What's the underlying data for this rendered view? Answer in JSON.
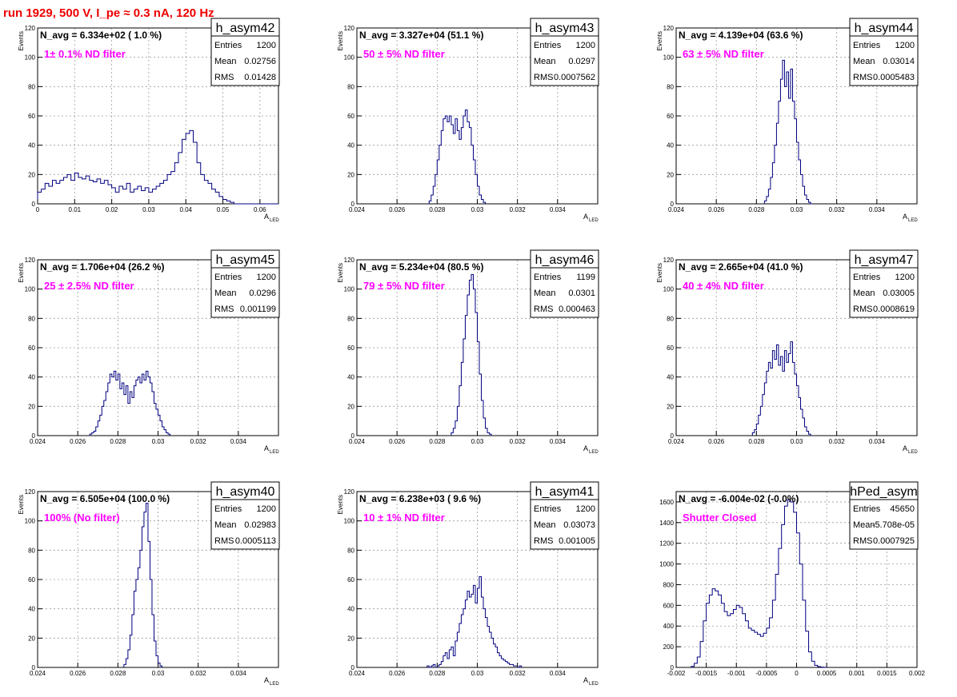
{
  "page": {
    "title": "run 1929,   500 V, I_pe ≈ 0.3 nA, 120 Hz"
  },
  "colors": {
    "hist_line": "#000080",
    "annotation": "#ff00ff",
    "title": "#ee0000",
    "grid": "#9a9a9a"
  },
  "chart_data": [
    {
      "type": "histogram",
      "name": "h_asym42",
      "navg_label": "N_avg = 6.334e+02 ( 1.0 %)",
      "filter_label": "1± 0.1% ND filter",
      "stats": {
        "entries_label": "Entries",
        "entries": "1200",
        "mean_label": "Mean",
        "mean": "0.02756",
        "rms_label": "RMS",
        "rms": "0.01428"
      },
      "ylabel": "Events",
      "xlabel": "A",
      "xlabel_sub": "LED",
      "xlim": [
        0,
        0.065
      ],
      "ylim": [
        0,
        120
      ],
      "xticks": [
        0,
        0.01,
        0.02,
        0.03,
        0.04,
        0.05,
        0.06
      ],
      "xtick_labels": [
        "0",
        "0.01",
        "0.02",
        "0.03",
        "0.04",
        "0.05",
        "0.06"
      ],
      "yticks": [
        0,
        20,
        40,
        60,
        80,
        100,
        120
      ],
      "ytick_labels": [
        "0",
        "20",
        "40",
        "60",
        "80",
        "100",
        "120"
      ],
      "bin_start": 0,
      "bin_width": 0.001,
      "counts": [
        8,
        10,
        14,
        12,
        16,
        14,
        16,
        18,
        20,
        16,
        21,
        18,
        17,
        19,
        16,
        15,
        17,
        14,
        16,
        13,
        11,
        8,
        12,
        10,
        14,
        8,
        10,
        12,
        9,
        11,
        8,
        10,
        12,
        14,
        16,
        20,
        22,
        28,
        35,
        44,
        48,
        50,
        42,
        28,
        20,
        16,
        14,
        10,
        8,
        5,
        3,
        2,
        1,
        0,
        0,
        0,
        0,
        0,
        0,
        0,
        0,
        0,
        0,
        0,
        0
      ]
    },
    {
      "type": "histogram",
      "name": "h_asym43",
      "navg_label": "N_avg = 3.327e+04 (51.1 %)",
      "filter_label": "50 ± 5% ND filter",
      "stats": {
        "entries_label": "Entries",
        "entries": "1200",
        "mean_label": "Mean",
        "mean": "0.0297",
        "rms_label": "RMS",
        "rms": "0.0007562"
      },
      "ylabel": "Events",
      "xlabel": "A",
      "xlabel_sub": "LED",
      "xlim": [
        0.024,
        0.036
      ],
      "ylim": [
        0,
        120
      ],
      "xticks": [
        0.024,
        0.026,
        0.028,
        0.03,
        0.032,
        0.034
      ],
      "xtick_labels": [
        "0.024",
        "0.026",
        "0.028",
        "0.03",
        "0.032",
        "0.034"
      ],
      "yticks": [
        0,
        20,
        40,
        60,
        80,
        100,
        120
      ],
      "ytick_labels": [
        "0",
        "20",
        "40",
        "60",
        "80",
        "100",
        "120"
      ],
      "bin_start": 0.0276,
      "bin_width": 0.0001,
      "counts": [
        2,
        6,
        12,
        20,
        30,
        40,
        50,
        58,
        60,
        56,
        60,
        54,
        48,
        58,
        50,
        44,
        52,
        60,
        64,
        56,
        52,
        40,
        30,
        20,
        12,
        6,
        3,
        1
      ]
    },
    {
      "type": "histogram",
      "name": "h_asym44",
      "navg_label": "N_avg = 4.139e+04 (63.6 %)",
      "filter_label": "63 ± 5% ND filter",
      "stats": {
        "entries_label": "Entries",
        "entries": "1200",
        "mean_label": "Mean",
        "mean": "0.03014",
        "rms_label": "RMS",
        "rms": "0.0005483"
      },
      "ylabel": "Events",
      "xlabel": "A",
      "xlabel_sub": "LED",
      "xlim": [
        0.024,
        0.036
      ],
      "ylim": [
        0,
        120
      ],
      "xticks": [
        0.024,
        0.026,
        0.028,
        0.03,
        0.032,
        0.034
      ],
      "xtick_labels": [
        "0.024",
        "0.026",
        "0.028",
        "0.03",
        "0.032",
        "0.034"
      ],
      "yticks": [
        0,
        20,
        40,
        60,
        80,
        100,
        120
      ],
      "ytick_labels": [
        "0",
        "20",
        "40",
        "60",
        "80",
        "100",
        "120"
      ],
      "bin_start": 0.0284,
      "bin_width": 0.0001,
      "counts": [
        2,
        5,
        10,
        18,
        28,
        40,
        55,
        70,
        85,
        98,
        80,
        90,
        72,
        92,
        70,
        58,
        42,
        30,
        20,
        12,
        6,
        3,
        1,
        0
      ]
    },
    {
      "type": "histogram",
      "name": "h_asym45",
      "navg_label": "N_avg = 1.706e+04 (26.2 %)",
      "filter_label": "25 ± 2.5% ND filter",
      "stats": {
        "entries_label": "Entries",
        "entries": "1200",
        "mean_label": "Mean",
        "mean": "0.0296",
        "rms_label": "RMS",
        "rms": "0.001199"
      },
      "ylabel": "Events",
      "xlabel": "A",
      "xlabel_sub": "LED",
      "xlim": [
        0.024,
        0.036
      ],
      "ylim": [
        0,
        120
      ],
      "xticks": [
        0.024,
        0.026,
        0.028,
        0.03,
        0.032,
        0.034
      ],
      "xtick_labels": [
        "0.024",
        "0.026",
        "0.028",
        "0.03",
        "0.032",
        "0.034"
      ],
      "yticks": [
        0,
        20,
        40,
        60,
        80,
        100,
        120
      ],
      "ytick_labels": [
        "0",
        "20",
        "40",
        "60",
        "80",
        "100",
        "120"
      ],
      "bin_start": 0.0266,
      "bin_width": 0.0001,
      "counts": [
        1,
        2,
        3,
        6,
        10,
        14,
        20,
        24,
        30,
        36,
        42,
        40,
        44,
        38,
        42,
        32,
        36,
        28,
        34,
        22,
        30,
        26,
        34,
        38,
        40,
        36,
        42,
        38,
        44,
        40,
        36,
        30,
        22,
        18,
        14,
        10,
        6,
        4,
        2,
        1
      ]
    },
    {
      "type": "histogram",
      "name": "h_asym46",
      "navg_label": "N_avg = 5.234e+04 (80.5 %)",
      "filter_label": "79 ± 5% ND filter",
      "stats": {
        "entries_label": "Entries",
        "entries": "1199",
        "mean_label": "Mean",
        "mean": "0.0301",
        "rms_label": "RMS",
        "rms": "0.000463"
      },
      "ylabel": "Events",
      "xlabel": "A",
      "xlabel_sub": "LED",
      "xlim": [
        0.024,
        0.036
      ],
      "ylim": [
        0,
        120
      ],
      "xticks": [
        0.024,
        0.026,
        0.028,
        0.03,
        0.032,
        0.034
      ],
      "xtick_labels": [
        "0.024",
        "0.026",
        "0.028",
        "0.03",
        "0.032",
        "0.034"
      ],
      "yticks": [
        0,
        20,
        40,
        60,
        80,
        100,
        120
      ],
      "ytick_labels": [
        "0",
        "20",
        "40",
        "60",
        "80",
        "100",
        "120"
      ],
      "bin_start": 0.0287,
      "bin_width": 0.0001,
      "counts": [
        2,
        5,
        10,
        20,
        34,
        50,
        66,
        82,
        96,
        106,
        110,
        100,
        84,
        64,
        42,
        24,
        12,
        5,
        2,
        1
      ]
    },
    {
      "type": "histogram",
      "name": "h_asym47",
      "navg_label": "N_avg = 2.665e+04 (41.0 %)",
      "filter_label": "40 ± 4% ND filter",
      "stats": {
        "entries_label": "Entries",
        "entries": "1200",
        "mean_label": "Mean",
        "mean": "0.03005",
        "rms_label": "RMS",
        "rms": "0.0008619"
      },
      "ylabel": "Events",
      "xlabel": "A",
      "xlabel_sub": "LED",
      "xlim": [
        0.024,
        0.036
      ],
      "ylim": [
        0,
        120
      ],
      "xticks": [
        0.024,
        0.026,
        0.028,
        0.03,
        0.032,
        0.034
      ],
      "xtick_labels": [
        "0.024",
        "0.026",
        "0.028",
        "0.03",
        "0.032",
        "0.034"
      ],
      "yticks": [
        0,
        20,
        40,
        60,
        80,
        100,
        120
      ],
      "ytick_labels": [
        "0",
        "20",
        "40",
        "60",
        "80",
        "100",
        "120"
      ],
      "bin_start": 0.0278,
      "bin_width": 0.0001,
      "counts": [
        2,
        4,
        8,
        14,
        20,
        28,
        36,
        44,
        50,
        46,
        58,
        52,
        62,
        48,
        54,
        44,
        58,
        50,
        56,
        64,
        50,
        42,
        34,
        26,
        18,
        12,
        6,
        3,
        1
      ]
    },
    {
      "type": "histogram",
      "name": "h_asym40",
      "navg_label": "N_avg = 6.505e+04 (100.0 %)",
      "filter_label": "100% (No filter)",
      "stats": {
        "entries_label": "Entries",
        "entries": "1200",
        "mean_label": "Mean",
        "mean": "0.02983",
        "rms_label": "RMS",
        "rms": "0.0005113"
      },
      "ylabel": "Events",
      "xlabel": "A",
      "xlabel_sub": "LED",
      "xlim": [
        0.024,
        0.036
      ],
      "ylim": [
        0,
        120
      ],
      "xticks": [
        0.024,
        0.026,
        0.028,
        0.03,
        0.032,
        0.034
      ],
      "xtick_labels": [
        "0.024",
        "0.026",
        "0.028",
        "0.03",
        "0.032",
        "0.034"
      ],
      "yticks": [
        0,
        20,
        40,
        60,
        80,
        100,
        120
      ],
      "ytick_labels": [
        "0",
        "20",
        "40",
        "60",
        "80",
        "100",
        "120"
      ],
      "bin_start": 0.0283,
      "bin_width": 0.0001,
      "counts": [
        2,
        6,
        12,
        22,
        36,
        52,
        60,
        68,
        80,
        96,
        106,
        112,
        86,
        60,
        36,
        18,
        8,
        3,
        1
      ]
    },
    {
      "type": "histogram",
      "name": "h_asym41",
      "navg_label": "N_avg = 6.238e+03 ( 9.6 %)",
      "filter_label": "10 ± 1% ND filter",
      "stats": {
        "entries_label": "Entries",
        "entries": "1200",
        "mean_label": "Mean",
        "mean": "0.03073",
        "rms_label": "RMS",
        "rms": "0.001005"
      },
      "ylabel": "Events",
      "xlabel": "A",
      "xlabel_sub": "LED",
      "xlim": [
        0.024,
        0.036
      ],
      "ylim": [
        0,
        120
      ],
      "xticks": [
        0.024,
        0.026,
        0.028,
        0.03,
        0.032,
        0.034
      ],
      "xtick_labels": [
        "0.024",
        "0.026",
        "0.028",
        "0.03",
        "0.032",
        "0.034"
      ],
      "yticks": [
        0,
        20,
        40,
        60,
        80,
        100,
        120
      ],
      "ytick_labels": [
        "0",
        "20",
        "40",
        "60",
        "80",
        "100",
        "120"
      ],
      "bin_start": 0.0275,
      "bin_width": 0.0001,
      "counts": [
        1,
        0,
        1,
        2,
        0,
        1,
        2,
        4,
        8,
        10,
        6,
        12,
        14,
        8,
        18,
        24,
        30,
        36,
        40,
        46,
        52,
        48,
        50,
        56,
        44,
        54,
        62,
        48,
        40,
        34,
        28,
        24,
        20,
        16,
        14,
        10,
        8,
        6,
        5,
        4,
        3,
        2,
        2,
        1,
        1,
        0,
        1
      ]
    },
    {
      "type": "histogram",
      "name": "hPed_asym",
      "navg_label": "N_avg = -6.004e-02 (-0.0%)",
      "filter_label": "Shutter Closed",
      "stats": {
        "entries_label": "Entries",
        "entries": "45650",
        "mean_label": "Mean",
        "mean": "-5.708e-05",
        "rms_label": "RMS",
        "rms": "0.0007925"
      },
      "ylabel": "",
      "xlabel": "",
      "xlabel_sub": "",
      "xlim": [
        -0.002,
        0.002
      ],
      "ylim": [
        0,
        1700
      ],
      "xticks": [
        -0.002,
        -0.0015,
        -0.001,
        -0.0005,
        0,
        0.0005,
        0.001,
        0.0015,
        0.002
      ],
      "xtick_labels": [
        "-0.002",
        "-0.0015",
        "-0.001",
        "-0.0005",
        "0",
        "0.0005",
        "0.001",
        "0.0015",
        "0.002"
      ],
      "yticks": [
        0,
        200,
        400,
        600,
        800,
        1000,
        1200,
        1400,
        1600
      ],
      "ytick_labels": [
        "0",
        "200",
        "400",
        "600",
        "800",
        "1000",
        "1200",
        "1400",
        "1600"
      ],
      "bin_start": -0.00175,
      "bin_width": 5e-05,
      "counts": [
        10,
        40,
        100,
        250,
        450,
        620,
        700,
        760,
        740,
        700,
        620,
        540,
        500,
        520,
        560,
        600,
        580,
        520,
        450,
        380,
        360,
        340,
        320,
        300,
        330,
        380,
        480,
        650,
        900,
        1150,
        1380,
        1560,
        1620,
        1600,
        1500,
        1300,
        1000,
        650,
        350,
        150,
        60,
        20,
        8,
        3,
        1
      ]
    }
  ]
}
